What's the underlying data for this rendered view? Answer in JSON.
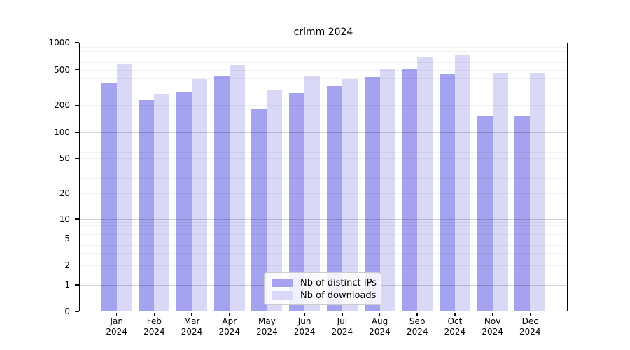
{
  "title": "crlmm 2024",
  "chart_data": {
    "type": "bar",
    "title": "crlmm 2024",
    "categories": [
      "Jan",
      "Feb",
      "Mar",
      "Apr",
      "May",
      "Jun",
      "Jul",
      "Aug",
      "Sep",
      "Oct",
      "Nov",
      "Dec"
    ],
    "x_year_label": "2024",
    "series": [
      {
        "name": "Nb of distinct IPs",
        "color": "#a3a3f0",
        "values": [
          355,
          230,
          285,
          430,
          185,
          275,
          325,
          415,
          505,
          445,
          155,
          150
        ]
      },
      {
        "name": "Nb of downloads",
        "color": "#d9d9f7",
        "values": [
          575,
          265,
          390,
          560,
          300,
          420,
          390,
          510,
          700,
          730,
          450,
          455
        ]
      }
    ],
    "y_axis": {
      "scale": "pseudo-log-from-zero",
      "tick_values": [
        0,
        1,
        2,
        5,
        10,
        20,
        50,
        100,
        200,
        500,
        1000
      ],
      "tick_labels": [
        "0",
        "1",
        "2",
        "5",
        "10",
        "20",
        "50",
        "100",
        "200",
        "500",
        "1000"
      ],
      "range": [
        0,
        1000
      ],
      "grid": "major+minor, drawn over bars"
    },
    "legend": {
      "position": "bottom-center",
      "entries": [
        "Nb of distinct IPs",
        "Nb of downloads"
      ]
    },
    "axis_color": "#000000"
  }
}
